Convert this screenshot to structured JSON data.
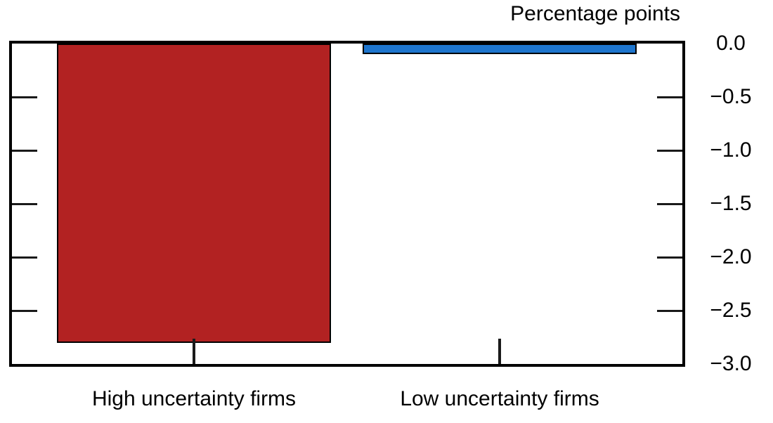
{
  "chart_data": {
    "type": "bar",
    "title": "Percentage points",
    "categories": [
      "High uncertainty firms",
      "Low uncertainty firms"
    ],
    "values": [
      -2.8,
      -0.1
    ],
    "bar_colors": [
      "#b22222",
      "#1e75cd"
    ],
    "bar_names": [
      "bar-high-uncertainty-firms",
      "bar-low-uncertainty-firms"
    ],
    "xlabel": "",
    "ylabel": "Percentage points",
    "ylim": [
      -3.0,
      0.0
    ],
    "ytick_values": [
      0.0,
      -0.5,
      -1.0,
      -1.5,
      -2.0,
      -2.5,
      -3.0
    ],
    "ytick_labels": [
      "0.0",
      "−0.5",
      "−1.0",
      "−1.5",
      "−2.0",
      "−2.5",
      "−3.0"
    ],
    "yaxis_side": "right",
    "grid": false,
    "legend": "none",
    "axis_color": "#000000",
    "background_color": "#ffffff",
    "text_color": "#000000"
  }
}
